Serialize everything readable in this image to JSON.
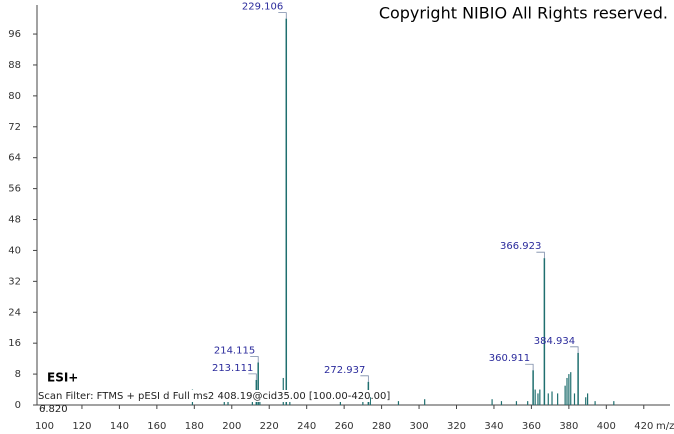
{
  "chart_data": {
    "type": "spectrum",
    "copyright": "Copyright NIBIO All Rights reserved.",
    "ionization": "ESI+",
    "scan_filter": "Scan Filter: FTMS + pESI d Full ms2 408.19@cid35.00 [100.00-420.00]",
    "retention": "6.820",
    "x_label": "m/z",
    "color": "#1f6f6f",
    "label_color": "#2b2b9c",
    "x": [
      213.111,
      214.115,
      229.106,
      272.937,
      360.911,
      366.923,
      384.934
    ],
    "values": [
      6.5,
      11,
      100,
      6,
      9,
      38,
      13.5
    ],
    "minor_x": [
      179,
      196,
      198,
      211,
      215,
      227.5,
      231,
      258,
      270,
      274,
      289,
      303,
      339,
      344,
      352,
      358,
      362,
      363.5,
      364.5,
      369,
      371,
      374,
      378,
      379,
      380,
      381,
      383,
      389,
      390,
      394,
      404
    ],
    "minor_values": [
      4,
      2.5,
      3,
      3,
      2.5,
      7,
      2,
      1,
      1.5,
      2,
      1,
      1.5,
      1.5,
      1,
      1,
      1,
      4,
      3,
      4,
      3,
      3.5,
      3,
      5,
      7,
      8,
      8.5,
      3,
      2,
      3,
      1,
      1
    ],
    "xlim": [
      96,
      434
    ],
    "ylim": [
      0,
      103
    ],
    "xticks": [
      100,
      120,
      140,
      160,
      180,
      200,
      220,
      240,
      260,
      280,
      300,
      320,
      340,
      360,
      380,
      400,
      420
    ],
    "yticks": [
      0,
      8,
      16,
      24,
      32,
      40,
      48,
      56,
      64,
      72,
      80,
      88,
      96
    ]
  }
}
